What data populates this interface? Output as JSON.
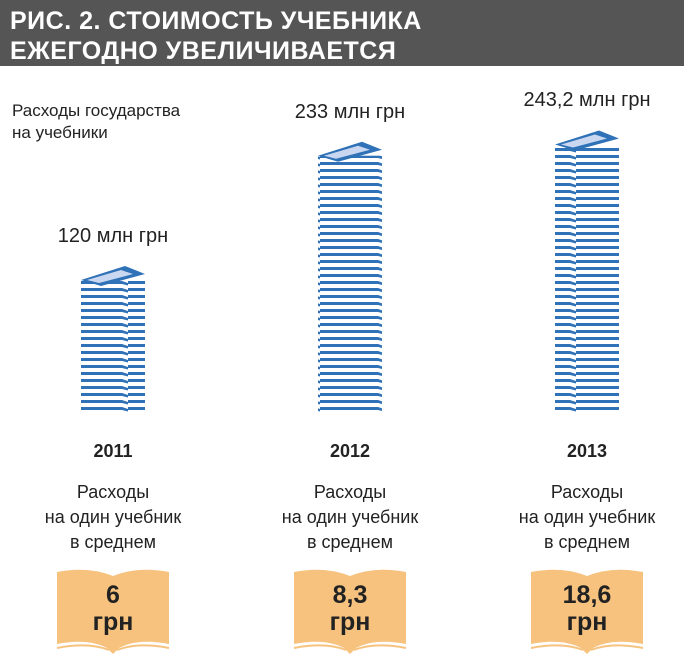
{
  "chart_data": {
    "type": "pictograph",
    "title": "РИС. 2. СТОИМОСТЬ УЧЕБНИКА\nЕЖЕГОДНО УВЕЛИЧИВАЕТСЯ",
    "categories": [
      "2011",
      "2012",
      "2013"
    ],
    "series": [
      {
        "name": "Расходы государства\nна учебники",
        "color": "#2f72b8",
        "values": [
          120,
          233,
          243.2
        ],
        "value_labels": [
          "120 млн грн",
          "233 млн грн",
          "243,2 млн грн"
        ]
      },
      {
        "name": "Расходы\nна один учебник\nв среднем",
        "color": "#f6c27e",
        "values": [
          6,
          8.3,
          18.6
        ],
        "value_labels": [
          "6 грн",
          "8,3 грн",
          "18,6 грн"
        ]
      }
    ]
  }
}
